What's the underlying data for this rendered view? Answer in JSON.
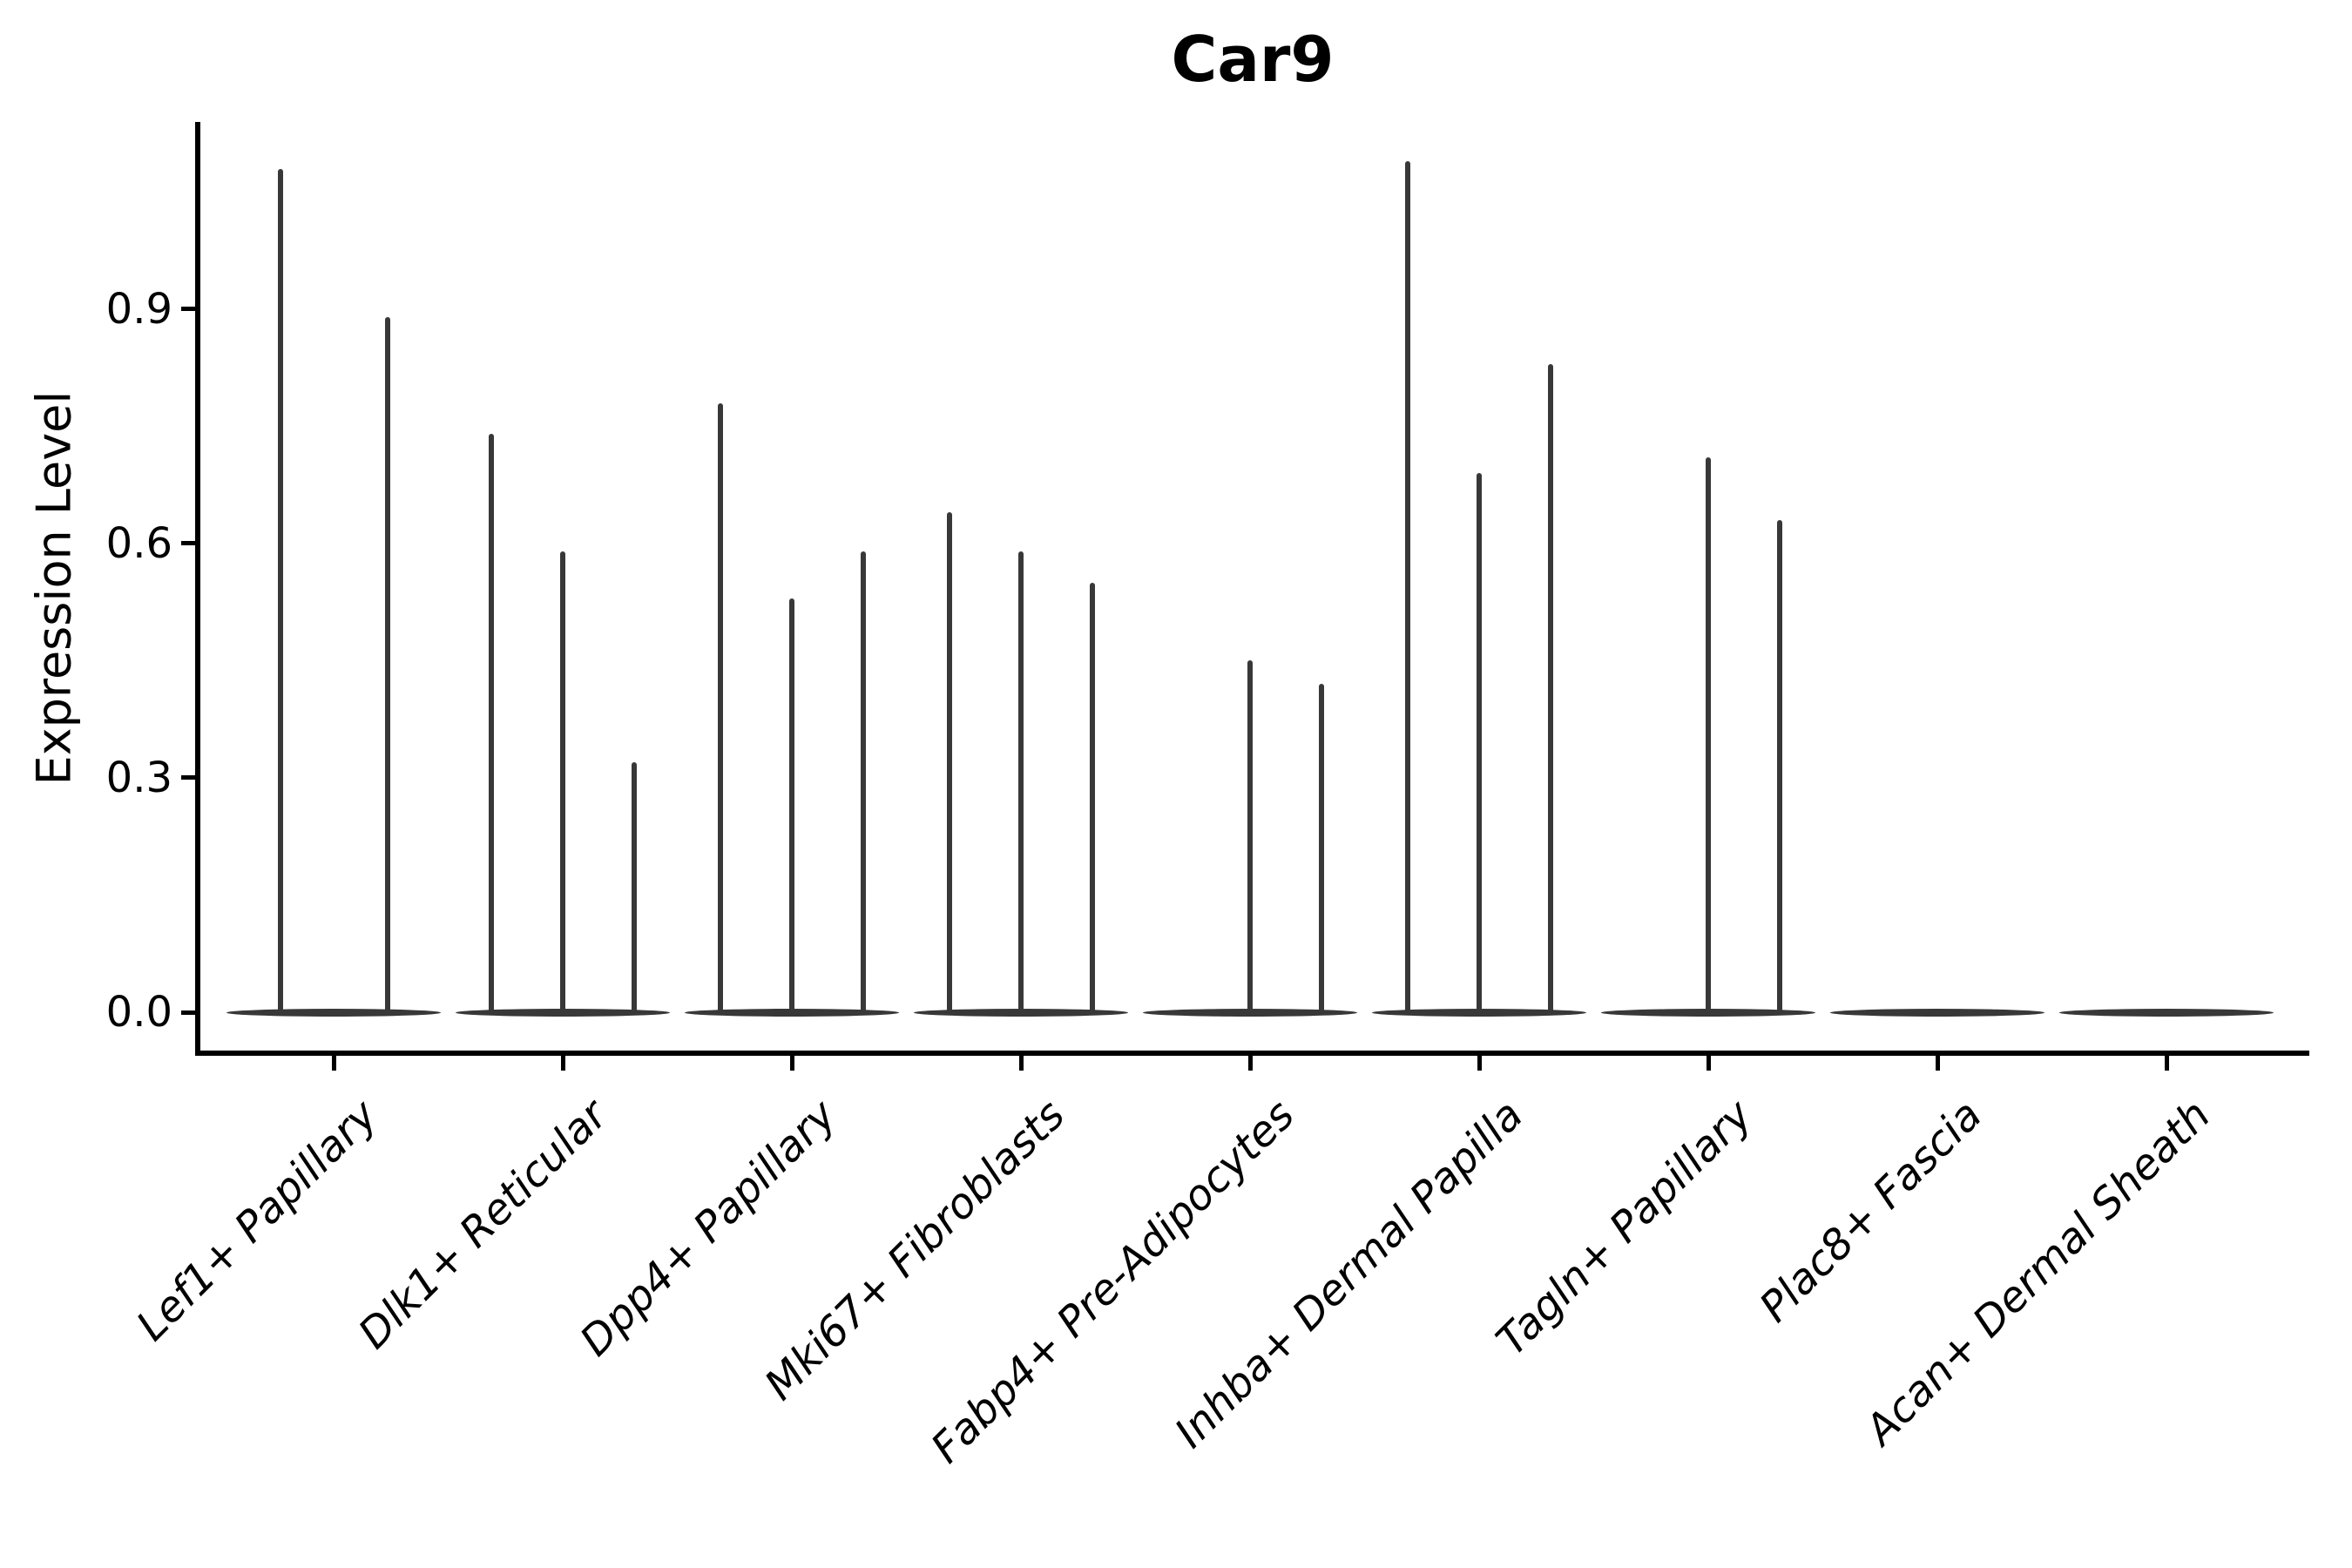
{
  "title": "Car9",
  "y_axis": {
    "label": "Expression Level",
    "tick_labels": [
      "0.9",
      "0.6",
      "0.3",
      "0.0"
    ],
    "tick_values": [
      0.9,
      0.6,
      0.3,
      0.0
    ]
  },
  "x_axis": {
    "categories": [
      "Lef1+ Papillary",
      "Dlk1+ Reticular",
      "Dpp4+ Papillary",
      "Mki67+ Fibroblasts",
      "Fabp4+ Pre-Adipocytes",
      "Inhba+ Dermal Papilla",
      "Tagln+ Papillary",
      "Plac8+ Fascia",
      "Acan+ Dermal Sheath"
    ]
  },
  "colors": {
    "violin": "#383838",
    "axis": "#000000",
    "text": "#000000",
    "background": "#ffffff"
  },
  "chart_data": {
    "type": "violin",
    "title": "Car9",
    "xlabel": "",
    "ylabel": "Expression Level",
    "ylim": [
      0,
      1.14
    ],
    "yticks": [
      0.0,
      0.3,
      0.6,
      0.9
    ],
    "grid": false,
    "legend_position": "none",
    "categories": [
      "Lef1+ Papillary",
      "Dlk1+ Reticular",
      "Dpp4+ Papillary",
      "Mki67+ Fibroblasts",
      "Fabp4+ Pre-Adipocytes",
      "Inhba+ Dermal Papilla",
      "Tagln+ Papillary",
      "Plac8+ Fascia",
      "Acan+ Dermal Sheath"
    ],
    "groups": [
      {
        "category": "Lef1+ Papillary",
        "violin_maxima": [
          1.08,
          0.89
        ]
      },
      {
        "category": "Dlk1+ Reticular",
        "violin_maxima": [
          0.74,
          0.59,
          0.32
        ]
      },
      {
        "category": "Dpp4+ Papillary",
        "violin_maxima": [
          0.78,
          0.53,
          0.59
        ]
      },
      {
        "category": "Mki67+ Fibroblasts",
        "violin_maxima": [
          0.64,
          0.59,
          0.55
        ]
      },
      {
        "category": "Fabp4+ Pre-Adipocytes",
        "violin_maxima": [
          0,
          0.45,
          0.42
        ]
      },
      {
        "category": "Inhba+ Dermal Papilla",
        "violin_maxima": [
          1.09,
          0.69,
          0.83
        ]
      },
      {
        "category": "Tagln+ Papillary",
        "violin_maxima": [
          0,
          0.71,
          0.63
        ]
      },
      {
        "category": "Plac8+ Fascia",
        "violin_maxima": [
          0,
          0,
          0
        ]
      },
      {
        "category": "Acan+ Dermal Sheath",
        "violin_maxima": [
          0,
          0,
          0
        ]
      }
    ],
    "distribution_note": "Every violin's mass is concentrated at expression 0 (flat lens on the baseline) with a thin vertical spike reaching up to the listed maximum expression value; groups with 0 maxima are entirely flat."
  }
}
